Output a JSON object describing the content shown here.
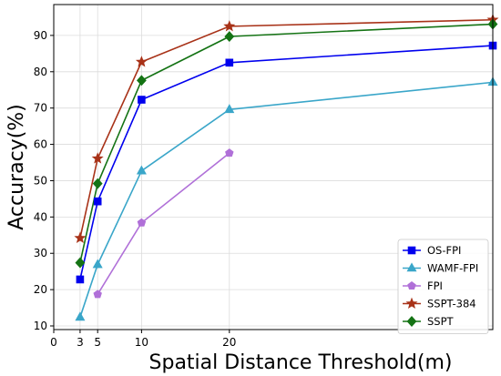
{
  "chart_data": {
    "type": "line",
    "xlabel": "Spatial Distance Threshold(m)",
    "ylabel": "Accuracy(%)",
    "xlim": [
      0,
      50
    ],
    "ylim": [
      9,
      98.5
    ],
    "xticks": [
      0,
      3,
      5,
      10,
      20
    ],
    "yticks": [
      10,
      20,
      30,
      40,
      50,
      60,
      70,
      80,
      90
    ],
    "grid": true,
    "legend_position": "lower-right",
    "series": [
      {
        "name": "OS-FPI",
        "color": "#0000ee",
        "marker": "square",
        "x": [
          3,
          5,
          10,
          20,
          50
        ],
        "values": [
          22.8,
          44.3,
          72.3,
          82.5,
          87.2
        ]
      },
      {
        "name": "WAMF-FPI",
        "color": "#3aa6c9",
        "marker": "triangle",
        "x": [
          3,
          5,
          10,
          20,
          50
        ],
        "values": [
          12.4,
          26.9,
          52.7,
          69.6,
          77.1
        ]
      },
      {
        "name": "FPI",
        "color": "#b070d8",
        "marker": "pentagon",
        "x": [
          5,
          10,
          20
        ],
        "values": [
          18.7,
          38.4,
          57.6
        ]
      },
      {
        "name": "SSPT-384",
        "color": "#a83218",
        "marker": "star",
        "x": [
          3,
          5,
          10,
          20,
          50
        ],
        "values": [
          34.2,
          56.1,
          82.7,
          92.5,
          94.3
        ]
      },
      {
        "name": "SSPT",
        "color": "#147314",
        "marker": "diamond",
        "x": [
          3,
          5,
          10,
          20,
          50
        ],
        "values": [
          27.4,
          49.2,
          77.6,
          89.7,
          93.1
        ]
      }
    ]
  }
}
